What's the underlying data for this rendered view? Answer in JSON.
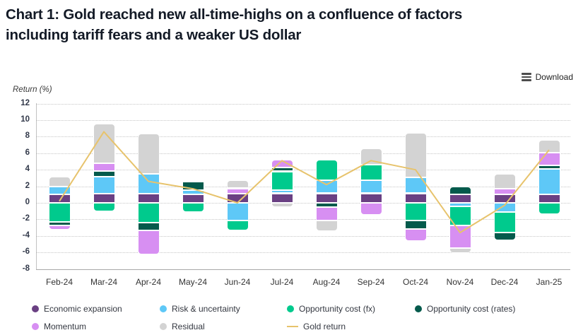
{
  "header": {
    "title_line1": "Chart 1: Gold reached new all-time-highs on a confluence of factors",
    "title_line2": "including tariff fears and a weaker US dollar"
  },
  "toolbar": {
    "download_label": "Download"
  },
  "chart_data": {
    "type": "bar",
    "stacked": true,
    "ylabel": "Return (%)",
    "ylim": [
      -8,
      12
    ],
    "ytick_step": 2,
    "grid": "horizontal-dotted",
    "legend_position": "bottom",
    "categories": [
      "Feb-24",
      "Mar-24",
      "Apr-24",
      "May-24",
      "Jun-24",
      "Jul-24",
      "Aug-24",
      "Sep-24",
      "Oct-24",
      "Nov-24",
      "Dec-24",
      "Jan-25"
    ],
    "series": [
      {
        "name": "Economic expansion",
        "color": "#6a4083",
        "values": [
          1.0,
          1.15,
          1.15,
          1.0,
          1.15,
          1.15,
          1.15,
          1.15,
          1.15,
          1.05,
          1.05,
          1.05
        ]
      },
      {
        "name": "Risk & uncertainty",
        "color": "#5ec8f7",
        "values": [
          0.95,
          2.05,
          2.35,
          0.5,
          -2.1,
          0.35,
          1.6,
          1.6,
          1.9,
          -0.4,
          -1.1,
          3.05
        ]
      },
      {
        "name": "Opportunity cost (fx)",
        "color": "#00ca8d",
        "values": [
          -2.3,
          -1.0,
          -2.35,
          -1.1,
          -1.2,
          2.3,
          2.5,
          1.9,
          -2.15,
          -2.35,
          -2.5,
          -1.4
        ]
      },
      {
        "name": "Opportunity cost (rates)",
        "color": "#045a4c",
        "values": [
          -0.45,
          0.65,
          -0.95,
          1.05,
          0.0,
          0.5,
          -0.55,
          0.0,
          -1.0,
          0.95,
          -0.95,
          0.4
        ]
      },
      {
        "name": "Momentum",
        "color": "#d78ff2",
        "values": [
          -0.5,
          0.95,
          -2.95,
          0.0,
          0.6,
          0.95,
          -1.6,
          -1.45,
          -1.5,
          -2.7,
          0.7,
          1.55
        ]
      },
      {
        "name": "Residual",
        "color": "#d3d3d3",
        "values": [
          1.2,
          4.75,
          4.9,
          0.2,
          0.95,
          -0.55,
          -1.3,
          1.9,
          5.4,
          -0.65,
          1.75,
          1.55
        ]
      }
    ],
    "line_series": {
      "name": "Gold return",
      "color": "#e7c36c",
      "values": [
        0.2,
        8.6,
        2.6,
        1.7,
        0.0,
        5.1,
        2.2,
        5.1,
        4.0,
        -3.6,
        -0.3,
        6.4
      ]
    }
  }
}
